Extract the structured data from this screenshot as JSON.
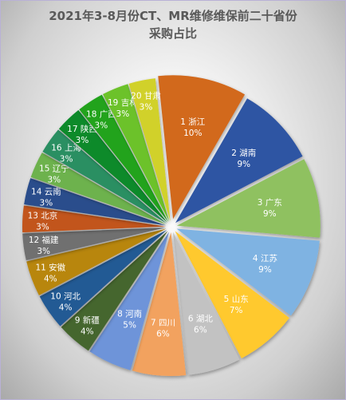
{
  "chart_data": {
    "type": "pie",
    "title_line1": "2021年3-8月份CT、MR维修维保前二十省份",
    "title_line2": "采购占比",
    "slices": [
      {
        "label": "1 浙江",
        "pct_text": "10%",
        "value": 10,
        "color": "#d2691e"
      },
      {
        "label": "2 湖南",
        "pct_text": "9%",
        "value": 9,
        "color": "#2f55a3"
      },
      {
        "label": "3 广东",
        "pct_text": "9%",
        "value": 9,
        "color": "#8fc160"
      },
      {
        "label": "4 江苏",
        "pct_text": "9%",
        "value": 9,
        "color": "#7fb3e2"
      },
      {
        "label": "5 山东",
        "pct_text": "7%",
        "value": 7,
        "color": "#ffc92e"
      },
      {
        "label": "6 湖北",
        "pct_text": "6%",
        "value": 6,
        "color": "#c2c2c2"
      },
      {
        "label": "7 四川",
        "pct_text": "6%",
        "value": 6,
        "color": "#f2a25e"
      },
      {
        "label": "8 河南",
        "pct_text": "5%",
        "value": 5,
        "color": "#6e94d9"
      },
      {
        "label": "9 新疆",
        "pct_text": "4%",
        "value": 4,
        "color": "#44662d"
      },
      {
        "label": "10 河北",
        "pct_text": "4%",
        "value": 4,
        "color": "#245a94"
      },
      {
        "label": "11 安徽",
        "pct_text": "4%",
        "value": 4,
        "color": "#b8860b"
      },
      {
        "label": "12 福建",
        "pct_text": "3%",
        "value": 3,
        "color": "#707070"
      },
      {
        "label": "13 北京",
        "pct_text": "3%",
        "value": 3,
        "color": "#c2551d"
      },
      {
        "label": "14 云南",
        "pct_text": "3%",
        "value": 3,
        "color": "#2b4e8c"
      },
      {
        "label": "15 辽宁",
        "pct_text": "3%",
        "value": 3,
        "color": "#6db24e"
      },
      {
        "label": "16 上海",
        "pct_text": "3%",
        "value": 3,
        "color": "#2c8f62"
      },
      {
        "label": "17 陕西",
        "pct_text": "3%",
        "value": 3,
        "color": "#0f8a2c"
      },
      {
        "label": "18 广西",
        "pct_text": "3%",
        "value": 3,
        "color": "#22a31f"
      },
      {
        "label": "19 吉林",
        "pct_text": "3%",
        "value": 3,
        "color": "#6cc22a"
      },
      {
        "label": "20 甘肃",
        "pct_text": "3%",
        "value": 3,
        "color": "#d1d12b"
      }
    ]
  }
}
